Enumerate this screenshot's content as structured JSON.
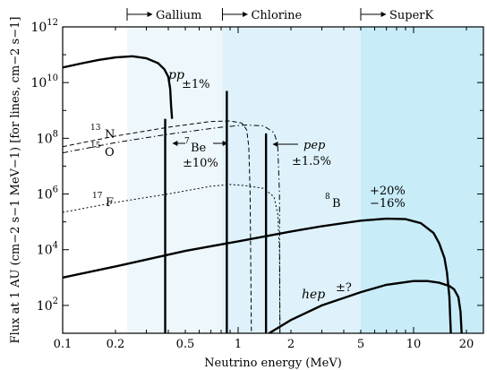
{
  "chart_data": {
    "type": "line",
    "xlabel": "Neutrino energy (MeV)",
    "ylabel": "Flux at 1 AU (cm−2 s−1 MeV−1) [for lines, cm−2 s−1]",
    "x_scale": "log",
    "y_scale": "log",
    "xlim": [
      0.1,
      25
    ],
    "ylim": [
      10,
      1000000000000.0
    ],
    "x_ticks": [
      {
        "value": 0.1,
        "label": "0.1"
      },
      {
        "value": 0.2,
        "label": "0.2"
      },
      {
        "value": 0.5,
        "label": "0.5"
      },
      {
        "value": 1,
        "label": "1"
      },
      {
        "value": 2,
        "label": "2"
      },
      {
        "value": 5,
        "label": "5"
      },
      {
        "value": 10,
        "label": "10"
      },
      {
        "value": 20,
        "label": "20"
      }
    ],
    "y_ticks": [
      {
        "value": 100,
        "base": "10",
        "exp": "2"
      },
      {
        "value": 10000,
        "base": "10",
        "exp": "4"
      },
      {
        "value": 1000000,
        "base": "10",
        "exp": "6"
      },
      {
        "value": 100000000,
        "base": "10",
        "exp": "8"
      },
      {
        "value": 10000000000,
        "base": "10",
        "exp": "10"
      },
      {
        "value": 1000000000000,
        "base": "10",
        "exp": "12"
      }
    ],
    "detector_regions": [
      {
        "name": "Gallium",
        "threshold": 0.233,
        "color": "#eef8fc"
      },
      {
        "name": "Chlorine",
        "threshold": 0.814,
        "color": "#dff2fb"
      },
      {
        "name": "SuperK",
        "threshold": 5.0,
        "color": "#c8ecf8"
      }
    ],
    "series": [
      {
        "id": "pp",
        "label": "pp",
        "uncertainty": "±1%",
        "style": "solid-thick",
        "points": [
          [
            0.1,
            35000000000.0
          ],
          [
            0.13,
            50000000000.0
          ],
          [
            0.16,
            65000000000.0
          ],
          [
            0.2,
            80000000000.0
          ],
          [
            0.25,
            88000000000.0
          ],
          [
            0.3,
            75000000000.0
          ],
          [
            0.35,
            50000000000.0
          ],
          [
            0.38,
            30000000000.0
          ],
          [
            0.4,
            16000000000.0
          ],
          [
            0.41,
            6000000000.0
          ],
          [
            0.415,
            1500000000.0
          ],
          [
            0.42,
            500000000.0
          ]
        ]
      },
      {
        "id": "B8",
        "label_pre": "8",
        "label": "B",
        "uncertainty_plus": "+20%",
        "uncertainty_minus": "−16%",
        "style": "solid-thick",
        "points": [
          [
            0.1,
            1000.0
          ],
          [
            0.2,
            2500.0
          ],
          [
            0.5,
            9000.0
          ],
          [
            1,
            20000.0
          ],
          [
            2,
            45000.0
          ],
          [
            3,
            70000.0
          ],
          [
            5,
            110000.0
          ],
          [
            7,
            130000.0
          ],
          [
            9,
            125000.0
          ],
          [
            11,
            90000.0
          ],
          [
            13,
            40000.0
          ],
          [
            14,
            17000.0
          ],
          [
            15,
            5000.0
          ],
          [
            15.5,
            1500.0
          ],
          [
            16,
            200
          ],
          [
            16.3,
            10
          ]
        ]
      },
      {
        "id": "hep",
        "label": "hep",
        "uncertainty": "±?",
        "style": "solid-thick",
        "points": [
          [
            1.5,
            10
          ],
          [
            2,
            30
          ],
          [
            3,
            100
          ],
          [
            5,
            300
          ],
          [
            7,
            550
          ],
          [
            10,
            750
          ],
          [
            12,
            750
          ],
          [
            14,
            650
          ],
          [
            16,
            500
          ],
          [
            17,
            380
          ],
          [
            18,
            200
          ],
          [
            18.5,
            60
          ],
          [
            18.8,
            10
          ]
        ]
      },
      {
        "id": "N13",
        "label_pre": "13",
        "label": "N",
        "style": "dashed",
        "points": [
          [
            0.1,
            50000000.0
          ],
          [
            0.2,
            120000000.0
          ],
          [
            0.4,
            250000000.0
          ],
          [
            0.7,
            400000000.0
          ],
          [
            0.9,
            420000000.0
          ],
          [
            1.05,
            350000000.0
          ],
          [
            1.12,
            200000000.0
          ],
          [
            1.15,
            50000000.0
          ],
          [
            1.17,
            1000000.0
          ],
          [
            1.19,
            10
          ]
        ]
      },
      {
        "id": "O15",
        "label_pre": "15",
        "label": "O",
        "style": "dash-dot",
        "points": [
          [
            0.1,
            30000000.0
          ],
          [
            0.2,
            70000000.0
          ],
          [
            0.4,
            140000000.0
          ],
          [
            0.8,
            250000000.0
          ],
          [
            1.1,
            300000000.0
          ],
          [
            1.4,
            280000000.0
          ],
          [
            1.6,
            160000000.0
          ],
          [
            1.68,
            60000000.0
          ],
          [
            1.72,
            1000000.0
          ],
          [
            1.73,
            10
          ]
        ]
      },
      {
        "id": "F17",
        "label_pre": "17",
        "label": "F",
        "style": "dotted",
        "points": [
          [
            0.1,
            220000.0
          ],
          [
            0.2,
            500000.0
          ],
          [
            0.4,
            1000000.0
          ],
          [
            0.7,
            1900000.0
          ],
          [
            0.9,
            2200000.0
          ],
          [
            1.1,
            2000000.0
          ],
          [
            1.4,
            1600000.0
          ],
          [
            1.6,
            800000.0
          ],
          [
            1.68,
            200000.0
          ],
          [
            1.72,
            10000.0
          ],
          [
            1.73,
            10
          ]
        ]
      }
    ],
    "lines": [
      {
        "id": "be7-low",
        "energy": 0.384,
        "flux": 500000000.0
      },
      {
        "id": "be7-high",
        "energy": 0.862,
        "flux": 5000000000.0
      },
      {
        "id": "pep",
        "energy": 1.442,
        "flux": 150000000.0
      }
    ],
    "annotations": {
      "be7_pre": "7",
      "be7_label": "Be",
      "be7_unc": "±10%",
      "pep_label": "pep",
      "pep_unc": "±1.5%"
    }
  }
}
